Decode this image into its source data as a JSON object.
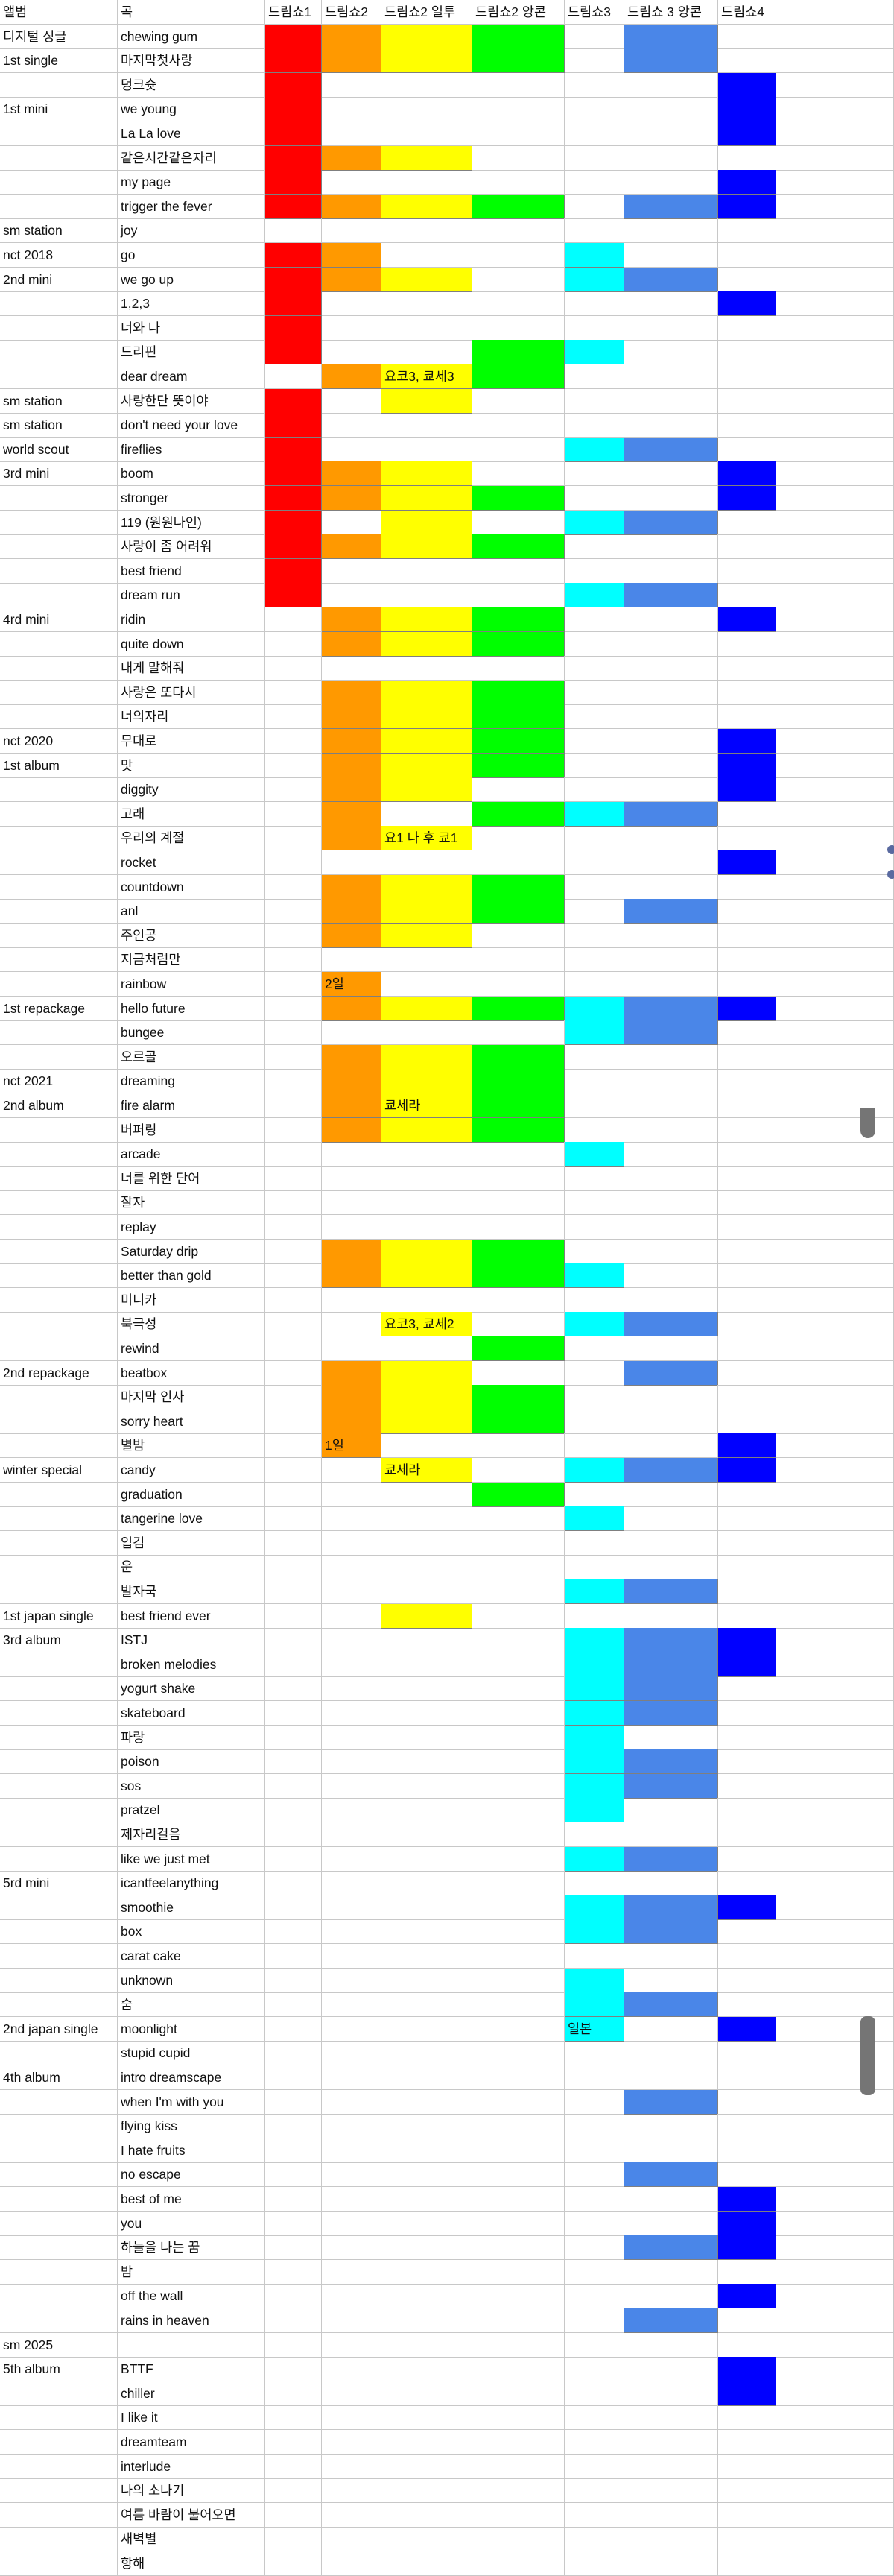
{
  "colors": {
    "ds1": "#ff0000",
    "ds2": "#ff9900",
    "ds2j": "#ffff00",
    "ds2k": "#00ff00",
    "ds3": "#00ffff",
    "ds3k": "#4a86e8",
    "ds4": "#0000ff",
    "grid": "#c8c8c8"
  },
  "header": {
    "album": "앨범",
    "song": "곡",
    "ds1": "드림쇼1",
    "ds2": "드림쇼2",
    "ds2j": "드림쇼2 일투",
    "ds2k": "드림쇼2 앙콘",
    "ds3": "드림쇼3",
    "ds3k": "드림쇼 3 앙콘",
    "ds4": "드림쇼4"
  },
  "rows": [
    {
      "album": "디지털 싱글",
      "song": "chewing gum",
      "f": [
        "ds1",
        "ds2",
        "ds2j",
        "ds2k",
        "ds3k"
      ]
    },
    {
      "album": "1st single",
      "song": "마지막첫사랑",
      "f": [
        "ds1",
        "ds2",
        "ds2j",
        "ds2k",
        "ds3k"
      ]
    },
    {
      "album": "",
      "song": "덩크슛",
      "f": [
        "ds1",
        "ds4"
      ]
    },
    {
      "album": "1st mini",
      "song": "we young",
      "f": [
        "ds1",
        "ds4"
      ]
    },
    {
      "album": "",
      "song": "La La love",
      "f": [
        "ds1",
        "ds4"
      ]
    },
    {
      "album": "",
      "song": "같은시간같은자리",
      "f": [
        "ds1",
        "ds2",
        "ds2j"
      ]
    },
    {
      "album": "",
      "song": "my page",
      "f": [
        "ds1",
        "ds4"
      ]
    },
    {
      "album": "",
      "song": "trigger the fever",
      "f": [
        "ds1",
        "ds2",
        "ds2j",
        "ds2k",
        "ds3k",
        "ds4"
      ]
    },
    {
      "album": "sm station",
      "song": "joy",
      "f": []
    },
    {
      "album": "nct 2018",
      "song": "go",
      "f": [
        "ds1",
        "ds2",
        "ds3"
      ]
    },
    {
      "album": "2nd mini",
      "song": "we go up",
      "f": [
        "ds1",
        "ds2",
        "ds2j",
        "ds3",
        "ds3k"
      ]
    },
    {
      "album": "",
      "song": "1,2,3",
      "f": [
        "ds1",
        "ds4"
      ]
    },
    {
      "album": "",
      "song": "너와 나",
      "f": [
        "ds1"
      ]
    },
    {
      "album": "",
      "song": "드리핀",
      "f": [
        "ds1",
        "ds2k",
        "ds3"
      ]
    },
    {
      "album": "",
      "song": "dear dream",
      "f": [
        "ds2",
        "ds2j",
        "ds2k"
      ],
      "t": {
        "ds2j": "요코3, 쿄세3"
      }
    },
    {
      "album": "sm station",
      "song": "사랑한단 뜻이야",
      "f": [
        "ds1",
        "ds2j"
      ]
    },
    {
      "album": "sm station",
      "song": "don't need your love",
      "f": [
        "ds1"
      ]
    },
    {
      "album": "world scout",
      "song": "fireflies",
      "f": [
        "ds1",
        "ds3",
        "ds3k"
      ]
    },
    {
      "album": "3rd mini",
      "song": "boom",
      "f": [
        "ds1",
        "ds2",
        "ds2j",
        "ds4"
      ]
    },
    {
      "album": "",
      "song": "stronger",
      "f": [
        "ds1",
        "ds2",
        "ds2j",
        "ds2k",
        "ds4"
      ]
    },
    {
      "album": "",
      "song": "119 (원원나인)",
      "f": [
        "ds1",
        "ds2j",
        "ds3",
        "ds3k"
      ]
    },
    {
      "album": "",
      "song": "사랑이 좀 어려워",
      "f": [
        "ds1",
        "ds2",
        "ds2j",
        "ds2k"
      ]
    },
    {
      "album": "",
      "song": "best friend",
      "f": [
        "ds1"
      ]
    },
    {
      "album": "",
      "song": "dream run",
      "f": [
        "ds1",
        "ds3",
        "ds3k"
      ]
    },
    {
      "album": "4rd mini",
      "song": "ridin",
      "f": [
        "ds2",
        "ds2j",
        "ds2k",
        "ds4"
      ]
    },
    {
      "album": "",
      "song": "quite down",
      "f": [
        "ds2",
        "ds2j",
        "ds2k"
      ]
    },
    {
      "album": "",
      "song": "내게 말해줘",
      "f": []
    },
    {
      "album": "",
      "song": "사랑은 또다시",
      "f": [
        "ds2",
        "ds2j",
        "ds2k"
      ]
    },
    {
      "album": "",
      "song": "너의자리",
      "f": [
        "ds2",
        "ds2j",
        "ds2k"
      ]
    },
    {
      "album": "nct 2020",
      "song": "무대로",
      "f": [
        "ds2",
        "ds2j",
        "ds2k",
        "ds4"
      ]
    },
    {
      "album": "1st album",
      "song": "맛",
      "f": [
        "ds2",
        "ds2j",
        "ds2k",
        "ds4"
      ]
    },
    {
      "album": "",
      "song": "diggity",
      "f": [
        "ds2",
        "ds2j",
        "ds4"
      ]
    },
    {
      "album": "",
      "song": "고래",
      "f": [
        "ds2",
        "ds2k",
        "ds3",
        "ds3k"
      ]
    },
    {
      "album": "",
      "song": "우리의 계절",
      "f": [
        "ds2",
        "ds2j"
      ],
      "t": {
        "ds2j": "요1 나 후 쿄1"
      }
    },
    {
      "album": "",
      "song": "rocket",
      "f": [
        "ds4"
      ]
    },
    {
      "album": "",
      "song": "countdown",
      "f": [
        "ds2",
        "ds2j",
        "ds2k"
      ]
    },
    {
      "album": "",
      "song": "anl",
      "f": [
        "ds2",
        "ds2j",
        "ds2k",
        "ds3k"
      ]
    },
    {
      "album": "",
      "song": "주인공",
      "f": [
        "ds2",
        "ds2j"
      ]
    },
    {
      "album": "",
      "song": "지금처럼만",
      "f": []
    },
    {
      "album": "",
      "song": "rainbow",
      "f": [
        "ds2"
      ],
      "t": {
        "ds2": "2일"
      }
    },
    {
      "album": "1st repackage",
      "song": "hello future",
      "f": [
        "ds2",
        "ds2j",
        "ds2k",
        "ds3",
        "ds3k",
        "ds4"
      ]
    },
    {
      "album": "",
      "song": "bungee",
      "f": [
        "ds3",
        "ds3k"
      ]
    },
    {
      "album": "",
      "song": "오르골",
      "f": [
        "ds2",
        "ds2j",
        "ds2k"
      ]
    },
    {
      "album": "nct 2021",
      "song": "dreaming",
      "f": [
        "ds2",
        "ds2j",
        "ds2k"
      ]
    },
    {
      "album": "2nd album",
      "song": "fire alarm",
      "f": [
        "ds2",
        "ds2j",
        "ds2k"
      ],
      "t": {
        "ds2j": "쿄세라"
      }
    },
    {
      "album": "",
      "song": "버퍼링",
      "f": [
        "ds2",
        "ds2j",
        "ds2k"
      ]
    },
    {
      "album": "",
      "song": "arcade",
      "f": [
        "ds3"
      ]
    },
    {
      "album": "",
      "song": "너를 위한 단어",
      "f": []
    },
    {
      "album": "",
      "song": "잘자",
      "f": []
    },
    {
      "album": "",
      "song": "replay",
      "f": []
    },
    {
      "album": "",
      "song": "Saturday drip",
      "f": [
        "ds2",
        "ds2j",
        "ds2k"
      ]
    },
    {
      "album": "",
      "song": "better than gold",
      "f": [
        "ds2",
        "ds2j",
        "ds2k",
        "ds3"
      ]
    },
    {
      "album": "",
      "song": "미니카",
      "f": []
    },
    {
      "album": "",
      "song": "북극성",
      "f": [
        "ds2j",
        "ds3",
        "ds3k"
      ],
      "t": {
        "ds2j": "요코3, 쿄세2"
      }
    },
    {
      "album": "",
      "song": "rewind",
      "f": [
        "ds2k"
      ]
    },
    {
      "album": "2nd repackage",
      "song": "beatbox",
      "f": [
        "ds2",
        "ds2j",
        "ds3k"
      ]
    },
    {
      "album": "",
      "song": "마지막 인사",
      "f": [
        "ds2",
        "ds2j",
        "ds2k"
      ]
    },
    {
      "album": "",
      "song": "sorry heart",
      "f": [
        "ds2",
        "ds2j",
        "ds2k"
      ]
    },
    {
      "album": "",
      "song": "별밤",
      "f": [
        "ds2",
        "ds4"
      ],
      "t": {
        "ds2": "1일"
      }
    },
    {
      "album": "winter special",
      "song": "candy",
      "f": [
        "ds2j",
        "ds3",
        "ds3k",
        "ds4"
      ],
      "t": {
        "ds2j": "쿄세라"
      }
    },
    {
      "album": "",
      "song": "graduation",
      "f": [
        "ds2k"
      ]
    },
    {
      "album": "",
      "song": "tangerine love",
      "f": [
        "ds3"
      ]
    },
    {
      "album": "",
      "song": "입김",
      "f": []
    },
    {
      "album": "",
      "song": "운",
      "f": []
    },
    {
      "album": "",
      "song": "발자국",
      "f": [
        "ds3",
        "ds3k"
      ]
    },
    {
      "album": "1st japan single",
      "song": "best friend ever",
      "f": [
        "ds2j"
      ]
    },
    {
      "album": "3rd album",
      "song": "ISTJ",
      "f": [
        "ds3",
        "ds3k",
        "ds4"
      ]
    },
    {
      "album": "",
      "song": "broken melodies",
      "f": [
        "ds3",
        "ds3k",
        "ds4"
      ]
    },
    {
      "album": "",
      "song": "yogurt shake",
      "f": [
        "ds3",
        "ds3k"
      ]
    },
    {
      "album": "",
      "song": "skateboard",
      "f": [
        "ds3",
        "ds3k"
      ]
    },
    {
      "album": "",
      "song": "파랑",
      "f": [
        "ds3"
      ]
    },
    {
      "album": "",
      "song": "poison",
      "f": [
        "ds3",
        "ds3k"
      ]
    },
    {
      "album": "",
      "song": "sos",
      "f": [
        "ds3",
        "ds3k"
      ]
    },
    {
      "album": "",
      "song": "pratzel",
      "f": [
        "ds3"
      ]
    },
    {
      "album": "",
      "song": "제자리걸음",
      "f": []
    },
    {
      "album": "",
      "song": "like we just met",
      "f": [
        "ds3",
        "ds3k"
      ]
    },
    {
      "album": "5rd mini",
      "song": "icantfeelanything",
      "f": []
    },
    {
      "album": "",
      "song": "smoothie",
      "f": [
        "ds3",
        "ds3k",
        "ds4"
      ]
    },
    {
      "album": "",
      "song": "box",
      "f": [
        "ds3",
        "ds3k"
      ]
    },
    {
      "album": "",
      "song": "carat cake",
      "f": []
    },
    {
      "album": "",
      "song": "unknown",
      "f": [
        "ds3"
      ]
    },
    {
      "album": "",
      "song": "숨",
      "f": [
        "ds3",
        "ds3k"
      ]
    },
    {
      "album": "2nd japan single",
      "song": "moonlight",
      "f": [
        "ds3",
        "ds4"
      ],
      "t": {
        "ds3": "일본"
      }
    },
    {
      "album": "",
      "song": "stupid cupid",
      "f": []
    },
    {
      "album": "4th album",
      "song": "intro dreamscape",
      "f": []
    },
    {
      "album": "",
      "song": "when I'm with you",
      "f": [
        "ds3k"
      ]
    },
    {
      "album": "",
      "song": "flying kiss",
      "f": []
    },
    {
      "album": "",
      "song": "I hate fruits",
      "f": []
    },
    {
      "album": "",
      "song": "no escape",
      "f": [
        "ds3k"
      ]
    },
    {
      "album": "",
      "song": "best of me",
      "f": [
        "ds4"
      ]
    },
    {
      "album": "",
      "song": "you",
      "f": [
        "ds4"
      ]
    },
    {
      "album": "",
      "song": "하늘을 나는 꿈",
      "f": [
        "ds3k",
        "ds4"
      ]
    },
    {
      "album": "",
      "song": "밤",
      "f": []
    },
    {
      "album": "",
      "song": "off the wall",
      "f": [
        "ds4"
      ]
    },
    {
      "album": "",
      "song": "rains in heaven",
      "f": [
        "ds3k"
      ]
    },
    {
      "album": "sm 2025",
      "song": "",
      "f": []
    },
    {
      "album": "5th album",
      "song": "BTTF",
      "f": [
        "ds4"
      ]
    },
    {
      "album": "",
      "song": "chiller",
      "f": [
        "ds4"
      ]
    },
    {
      "album": "",
      "song": "I like it",
      "f": []
    },
    {
      "album": "",
      "song": "dreamteam",
      "f": []
    },
    {
      "album": "",
      "song": "interlude",
      "f": []
    },
    {
      "album": "",
      "song": "나의 소나기",
      "f": []
    },
    {
      "album": "",
      "song": "여름 바람이 불어오면",
      "f": []
    },
    {
      "album": "",
      "song": "새벽별",
      "f": []
    },
    {
      "album": "",
      "song": "항해",
      "f": []
    }
  ]
}
